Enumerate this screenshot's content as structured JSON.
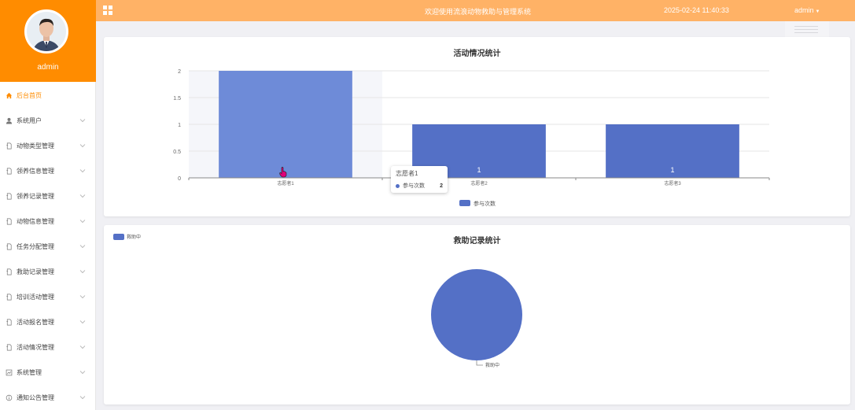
{
  "profile": {
    "name": "admin"
  },
  "topbar": {
    "title": "欢迎使用流浪动物救助与管理系统",
    "datetime": "2025-02-24 11:40:33",
    "user": "admin",
    "background": "#ffb266"
  },
  "sidebar": {
    "accent": "#ff8c00",
    "items": [
      {
        "label": "后台首页",
        "icon": "home-icon",
        "active": true,
        "expandable": false
      },
      {
        "label": "系统用户",
        "icon": "user-icon",
        "active": false,
        "expandable": true
      },
      {
        "label": "动物类型管理",
        "icon": "document-icon",
        "active": false,
        "expandable": true
      },
      {
        "label": "领养信息管理",
        "icon": "document-icon",
        "active": false,
        "expandable": true
      },
      {
        "label": "领养记录管理",
        "icon": "document-icon",
        "active": false,
        "expandable": true
      },
      {
        "label": "动物信息管理",
        "icon": "document-icon",
        "active": false,
        "expandable": true
      },
      {
        "label": "任务分配管理",
        "icon": "document-icon",
        "active": false,
        "expandable": true
      },
      {
        "label": "救助记录管理",
        "icon": "document-icon",
        "active": false,
        "expandable": true
      },
      {
        "label": "培训活动管理",
        "icon": "document-icon",
        "active": false,
        "expandable": true
      },
      {
        "label": "活动报名管理",
        "icon": "document-icon",
        "active": false,
        "expandable": true
      },
      {
        "label": "活动情况管理",
        "icon": "document-icon",
        "active": false,
        "expandable": true
      },
      {
        "label": "系统管理",
        "icon": "settings-icon",
        "active": false,
        "expandable": true
      },
      {
        "label": "通知公告管理",
        "icon": "info-icon",
        "active": false,
        "expandable": true
      }
    ]
  },
  "chart_data": [
    {
      "type": "bar",
      "title": "活动情况统计",
      "categories": [
        "志愿者1",
        "志愿者2",
        "志愿者3"
      ],
      "series": [
        {
          "name": "参与次数",
          "values": [
            2,
            1,
            1
          ],
          "color": "#5470c6"
        }
      ],
      "ylim": [
        0,
        2
      ],
      "yticks": [
        "0",
        "0.5",
        "1",
        "1.5",
        "2"
      ],
      "data_labels": [
        "",
        "1",
        "1"
      ],
      "legend": "bottom-center",
      "grid": true,
      "hovered_category": "志愿者1",
      "tooltip": {
        "title": "志愿者1",
        "series": "参与次数",
        "value": "2"
      }
    },
    {
      "type": "pie",
      "title": "救助记录统计",
      "slices": [
        {
          "name": "救助中",
          "value": 1,
          "color": "#5470c6"
        }
      ],
      "legend": "top-left"
    }
  ]
}
